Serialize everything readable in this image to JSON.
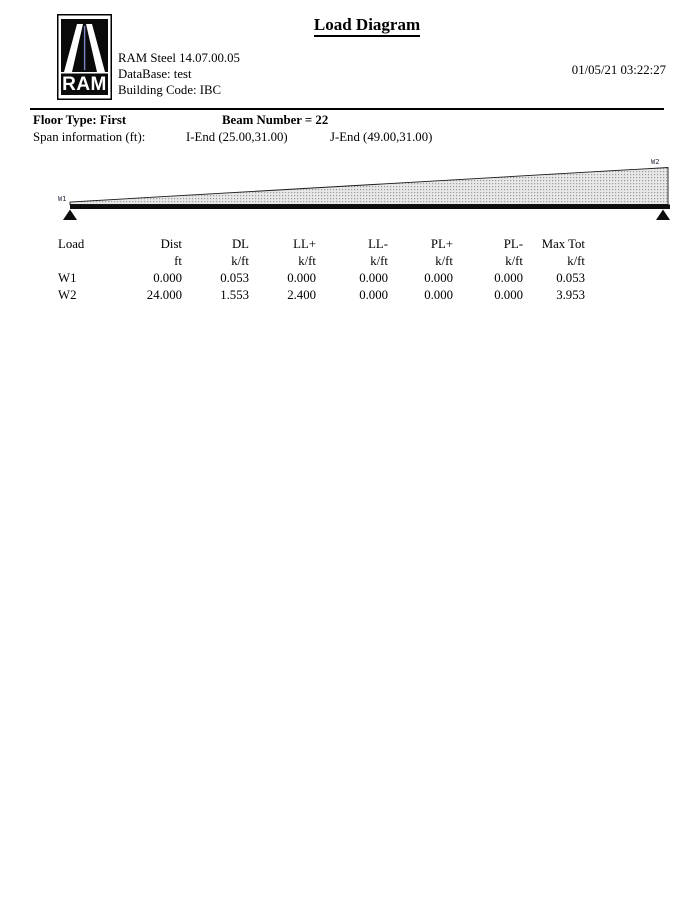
{
  "page": {
    "title": "Load Diagram",
    "datetime": "01/05/21 03:22:27"
  },
  "logo": {
    "text": "RAM"
  },
  "app": {
    "product": "RAM Steel 14.07.00.05",
    "database": "DataBase: test",
    "building_code": "Building Code: IBC"
  },
  "beam_info": {
    "floor_type": "Floor Type: First",
    "beam_number": "Beam Number = 22",
    "span_label": "Span information (ft):",
    "i_end": "I-End (25.00,31.00)",
    "j_end": "J-End (49.00,31.00)"
  },
  "diagram": {
    "left_label": "W1",
    "right_label": "W2"
  },
  "table": {
    "headers": [
      "Load",
      "Dist",
      "DL",
      "LL+",
      "LL-",
      "PL+",
      "PL-",
      "Max Tot"
    ],
    "units": [
      "",
      "ft",
      "k/ft",
      "k/ft",
      "k/ft",
      "k/ft",
      "k/ft",
      "k/ft"
    ],
    "rows": [
      [
        "W1",
        "0.000",
        "0.053",
        "0.000",
        "0.000",
        "0.000",
        "0.000",
        "0.053"
      ],
      [
        "W2",
        "24.000",
        "1.553",
        "2.400",
        "0.000",
        "0.000",
        "0.000",
        "3.953"
      ]
    ]
  }
}
